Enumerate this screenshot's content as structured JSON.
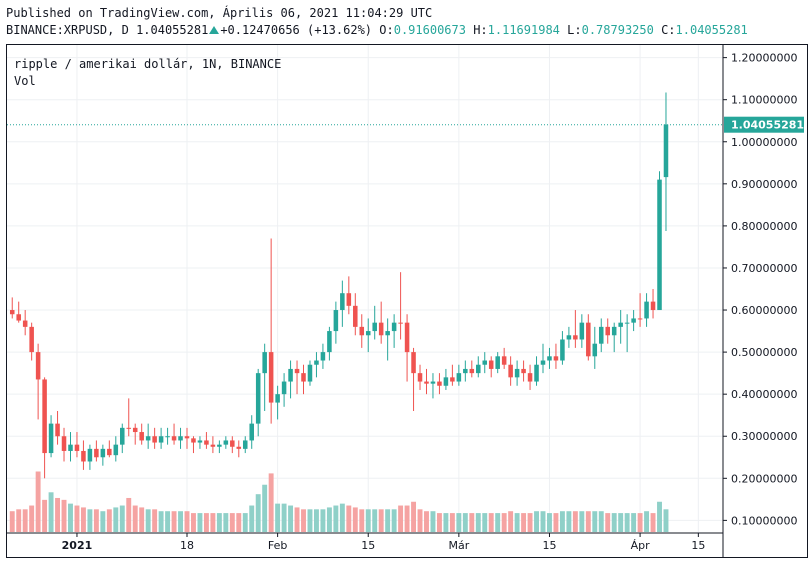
{
  "header": {
    "published": "Published on TradingView.com, Április 06, 2021 11:04:29 UTC",
    "symbol_line": "BINANCE:XRPUSD, D",
    "last": "1.04055281",
    "change": "+0.12470656 (+13.62%)",
    "o_label": "O:",
    "o_value": "0.91600673",
    "h_label": "H:",
    "h_value": "1.11691984",
    "l_label": "L:",
    "l_value": "0.78793250",
    "c_label": "C:",
    "c_value": "1.04055281"
  },
  "legend": {
    "line1": "ripple / amerikai dollár, 1N, BINANCE",
    "line2": "Vol"
  },
  "colors": {
    "up": "#26a69a",
    "down": "#ef5350",
    "vol_up": "#8fd0c8",
    "vol_down": "#f5a3a2",
    "price_line": "#26a69a",
    "last_label_bg": "#26a69a",
    "grid": "#eef0f3"
  },
  "chart_data": {
    "type": "candlestick",
    "y_axis": {
      "ticks": [
        "1.20000000",
        "1.10000000",
        "1.00000000",
        "0.90000000",
        "0.80000000",
        "0.70000000",
        "0.60000000",
        "0.50000000",
        "0.40000000",
        "0.30000000",
        "0.20000000",
        "0.10000000"
      ],
      "tick_values": [
        1.2,
        1.1,
        1.0,
        0.9,
        0.8,
        0.7,
        0.6,
        0.5,
        0.4,
        0.3,
        0.2,
        0.1
      ],
      "range": [
        0.07,
        1.23
      ],
      "position": "right"
    },
    "x_axis": {
      "ticks": [
        {
          "label": "2021",
          "index": 10,
          "bold": true
        },
        {
          "label": "18",
          "index": 27
        },
        {
          "label": "Feb",
          "index": 41
        },
        {
          "label": "15",
          "index": 55
        },
        {
          "label": "Már",
          "index": 69
        },
        {
          "label": "15",
          "index": 83
        },
        {
          "label": "Ápr",
          "index": 97
        },
        {
          "label": "15",
          "index": 106
        }
      ],
      "total_slots": 110
    },
    "last_price": 1.04055281,
    "last_price_label": "1.04055281",
    "grid": true,
    "candles": [
      [
        0.6,
        0.63,
        0.58,
        0.59,
        false
      ],
      [
        0.59,
        0.62,
        0.57,
        0.575,
        false
      ],
      [
        0.575,
        0.6,
        0.54,
        0.56,
        false
      ],
      [
        0.56,
        0.57,
        0.48,
        0.5,
        false
      ],
      [
        0.5,
        0.52,
        0.34,
        0.435,
        false
      ],
      [
        0.435,
        0.44,
        0.2,
        0.26,
        false
      ],
      [
        0.26,
        0.35,
        0.25,
        0.33,
        true
      ],
      [
        0.33,
        0.36,
        0.28,
        0.3,
        false
      ],
      [
        0.3,
        0.32,
        0.24,
        0.265,
        false
      ],
      [
        0.265,
        0.31,
        0.24,
        0.28,
        true
      ],
      [
        0.28,
        0.31,
        0.25,
        0.265,
        false
      ],
      [
        0.265,
        0.29,
        0.22,
        0.24,
        false
      ],
      [
        0.24,
        0.28,
        0.22,
        0.27,
        true
      ],
      [
        0.27,
        0.29,
        0.24,
        0.25,
        false
      ],
      [
        0.25,
        0.28,
        0.23,
        0.27,
        true
      ],
      [
        0.27,
        0.29,
        0.25,
        0.255,
        false
      ],
      [
        0.255,
        0.3,
        0.24,
        0.28,
        true
      ],
      [
        0.28,
        0.33,
        0.26,
        0.32,
        true
      ],
      [
        0.32,
        0.39,
        0.3,
        0.32,
        false
      ],
      [
        0.32,
        0.33,
        0.28,
        0.31,
        false
      ],
      [
        0.31,
        0.33,
        0.28,
        0.29,
        false
      ],
      [
        0.29,
        0.33,
        0.27,
        0.3,
        true
      ],
      [
        0.3,
        0.32,
        0.27,
        0.285,
        false
      ],
      [
        0.285,
        0.32,
        0.27,
        0.3,
        true
      ],
      [
        0.3,
        0.32,
        0.28,
        0.3,
        true
      ],
      [
        0.3,
        0.33,
        0.28,
        0.29,
        false
      ],
      [
        0.29,
        0.32,
        0.27,
        0.3,
        true
      ],
      [
        0.3,
        0.32,
        0.27,
        0.295,
        false
      ],
      [
        0.295,
        0.3,
        0.26,
        0.285,
        false
      ],
      [
        0.285,
        0.3,
        0.27,
        0.29,
        true
      ],
      [
        0.29,
        0.31,
        0.27,
        0.28,
        false
      ],
      [
        0.28,
        0.3,
        0.26,
        0.275,
        false
      ],
      [
        0.275,
        0.29,
        0.26,
        0.28,
        true
      ],
      [
        0.28,
        0.3,
        0.27,
        0.29,
        true
      ],
      [
        0.29,
        0.3,
        0.26,
        0.275,
        false
      ],
      [
        0.275,
        0.29,
        0.25,
        0.27,
        false
      ],
      [
        0.27,
        0.3,
        0.26,
        0.29,
        true
      ],
      [
        0.29,
        0.35,
        0.27,
        0.33,
        true
      ],
      [
        0.33,
        0.46,
        0.3,
        0.45,
        true
      ],
      [
        0.45,
        0.52,
        0.36,
        0.5,
        true
      ],
      [
        0.5,
        0.77,
        0.33,
        0.38,
        false
      ],
      [
        0.38,
        0.42,
        0.34,
        0.4,
        true
      ],
      [
        0.4,
        0.45,
        0.37,
        0.43,
        true
      ],
      [
        0.43,
        0.48,
        0.39,
        0.46,
        true
      ],
      [
        0.46,
        0.48,
        0.4,
        0.45,
        false
      ],
      [
        0.45,
        0.47,
        0.4,
        0.43,
        false
      ],
      [
        0.43,
        0.48,
        0.42,
        0.47,
        true
      ],
      [
        0.47,
        0.5,
        0.44,
        0.48,
        true
      ],
      [
        0.48,
        0.52,
        0.46,
        0.5,
        true
      ],
      [
        0.5,
        0.56,
        0.48,
        0.55,
        true
      ],
      [
        0.55,
        0.62,
        0.52,
        0.6,
        true
      ],
      [
        0.6,
        0.67,
        0.56,
        0.64,
        true
      ],
      [
        0.64,
        0.68,
        0.59,
        0.61,
        false
      ],
      [
        0.61,
        0.64,
        0.54,
        0.56,
        false
      ],
      [
        0.56,
        0.59,
        0.51,
        0.54,
        false
      ],
      [
        0.54,
        0.58,
        0.5,
        0.55,
        true
      ],
      [
        0.55,
        0.61,
        0.53,
        0.57,
        true
      ],
      [
        0.57,
        0.62,
        0.52,
        0.54,
        false
      ],
      [
        0.54,
        0.58,
        0.48,
        0.55,
        true
      ],
      [
        0.55,
        0.59,
        0.51,
        0.57,
        true
      ],
      [
        0.57,
        0.69,
        0.53,
        0.57,
        false
      ],
      [
        0.57,
        0.59,
        0.43,
        0.5,
        false
      ],
      [
        0.5,
        0.51,
        0.36,
        0.45,
        false
      ],
      [
        0.45,
        0.47,
        0.41,
        0.43,
        false
      ],
      [
        0.43,
        0.46,
        0.4,
        0.425,
        false
      ],
      [
        0.425,
        0.45,
        0.39,
        0.43,
        true
      ],
      [
        0.43,
        0.45,
        0.4,
        0.42,
        false
      ],
      [
        0.42,
        0.46,
        0.41,
        0.44,
        true
      ],
      [
        0.44,
        0.47,
        0.42,
        0.43,
        false
      ],
      [
        0.43,
        0.47,
        0.42,
        0.45,
        true
      ],
      [
        0.45,
        0.48,
        0.43,
        0.46,
        true
      ],
      [
        0.46,
        0.48,
        0.44,
        0.45,
        false
      ],
      [
        0.45,
        0.49,
        0.44,
        0.47,
        true
      ],
      [
        0.47,
        0.5,
        0.45,
        0.48,
        true
      ],
      [
        0.48,
        0.49,
        0.44,
        0.46,
        false
      ],
      [
        0.46,
        0.5,
        0.45,
        0.49,
        true
      ],
      [
        0.49,
        0.51,
        0.46,
        0.47,
        false
      ],
      [
        0.47,
        0.49,
        0.42,
        0.44,
        false
      ],
      [
        0.44,
        0.48,
        0.42,
        0.46,
        true
      ],
      [
        0.46,
        0.48,
        0.43,
        0.45,
        false
      ],
      [
        0.45,
        0.47,
        0.41,
        0.43,
        false
      ],
      [
        0.43,
        0.49,
        0.42,
        0.47,
        true
      ],
      [
        0.47,
        0.52,
        0.45,
        0.48,
        true
      ],
      [
        0.48,
        0.51,
        0.46,
        0.49,
        true
      ],
      [
        0.49,
        0.52,
        0.46,
        0.48,
        false
      ],
      [
        0.48,
        0.55,
        0.47,
        0.53,
        true
      ],
      [
        0.53,
        0.56,
        0.51,
        0.54,
        true
      ],
      [
        0.54,
        0.6,
        0.51,
        0.53,
        false
      ],
      [
        0.53,
        0.59,
        0.51,
        0.57,
        true
      ],
      [
        0.57,
        0.59,
        0.48,
        0.49,
        false
      ],
      [
        0.49,
        0.56,
        0.46,
        0.52,
        true
      ],
      [
        0.52,
        0.58,
        0.5,
        0.56,
        true
      ],
      [
        0.56,
        0.58,
        0.52,
        0.54,
        false
      ],
      [
        0.54,
        0.57,
        0.5,
        0.56,
        true
      ],
      [
        0.56,
        0.6,
        0.52,
        0.57,
        true
      ],
      [
        0.57,
        0.59,
        0.5,
        0.57,
        true
      ],
      [
        0.57,
        0.6,
        0.55,
        0.58,
        true
      ],
      [
        0.58,
        0.64,
        0.56,
        0.58,
        false
      ],
      [
        0.58,
        0.64,
        0.56,
        0.62,
        true
      ],
      [
        0.62,
        0.65,
        0.58,
        0.6,
        false
      ],
      [
        0.6,
        0.93,
        0.6,
        0.91,
        true
      ],
      [
        0.916,
        1.117,
        0.788,
        1.041,
        true
      ]
    ],
    "volume": [
      [
        0.11,
        false
      ],
      [
        0.12,
        false
      ],
      [
        0.12,
        false
      ],
      [
        0.14,
        false
      ],
      [
        0.32,
        false
      ],
      [
        0.17,
        false
      ],
      [
        0.21,
        true
      ],
      [
        0.18,
        false
      ],
      [
        0.17,
        false
      ],
      [
        0.15,
        true
      ],
      [
        0.14,
        false
      ],
      [
        0.13,
        false
      ],
      [
        0.12,
        true
      ],
      [
        0.12,
        false
      ],
      [
        0.11,
        true
      ],
      [
        0.12,
        false
      ],
      [
        0.13,
        true
      ],
      [
        0.14,
        true
      ],
      [
        0.18,
        false
      ],
      [
        0.14,
        false
      ],
      [
        0.13,
        false
      ],
      [
        0.12,
        true
      ],
      [
        0.12,
        false
      ],
      [
        0.11,
        true
      ],
      [
        0.11,
        true
      ],
      [
        0.11,
        false
      ],
      [
        0.11,
        true
      ],
      [
        0.11,
        false
      ],
      [
        0.1,
        false
      ],
      [
        0.1,
        true
      ],
      [
        0.1,
        false
      ],
      [
        0.1,
        false
      ],
      [
        0.1,
        true
      ],
      [
        0.1,
        true
      ],
      [
        0.1,
        false
      ],
      [
        0.1,
        false
      ],
      [
        0.1,
        true
      ],
      [
        0.14,
        true
      ],
      [
        0.2,
        true
      ],
      [
        0.25,
        true
      ],
      [
        0.31,
        false
      ],
      [
        0.15,
        true
      ],
      [
        0.15,
        true
      ],
      [
        0.14,
        true
      ],
      [
        0.13,
        false
      ],
      [
        0.12,
        false
      ],
      [
        0.12,
        true
      ],
      [
        0.12,
        true
      ],
      [
        0.12,
        true
      ],
      [
        0.13,
        true
      ],
      [
        0.14,
        true
      ],
      [
        0.15,
        true
      ],
      [
        0.14,
        false
      ],
      [
        0.13,
        false
      ],
      [
        0.12,
        false
      ],
      [
        0.12,
        true
      ],
      [
        0.12,
        true
      ],
      [
        0.12,
        false
      ],
      [
        0.12,
        true
      ],
      [
        0.12,
        true
      ],
      [
        0.14,
        false
      ],
      [
        0.14,
        false
      ],
      [
        0.16,
        false
      ],
      [
        0.12,
        false
      ],
      [
        0.11,
        false
      ],
      [
        0.11,
        true
      ],
      [
        0.1,
        false
      ],
      [
        0.1,
        true
      ],
      [
        0.1,
        false
      ],
      [
        0.1,
        true
      ],
      [
        0.1,
        true
      ],
      [
        0.1,
        false
      ],
      [
        0.1,
        true
      ],
      [
        0.1,
        true
      ],
      [
        0.1,
        false
      ],
      [
        0.1,
        true
      ],
      [
        0.1,
        false
      ],
      [
        0.11,
        false
      ],
      [
        0.1,
        true
      ],
      [
        0.1,
        false
      ],
      [
        0.1,
        false
      ],
      [
        0.11,
        true
      ],
      [
        0.11,
        true
      ],
      [
        0.1,
        true
      ],
      [
        0.1,
        false
      ],
      [
        0.11,
        true
      ],
      [
        0.11,
        true
      ],
      [
        0.11,
        false
      ],
      [
        0.11,
        true
      ],
      [
        0.11,
        false
      ],
      [
        0.11,
        true
      ],
      [
        0.11,
        true
      ],
      [
        0.1,
        false
      ],
      [
        0.1,
        true
      ],
      [
        0.1,
        true
      ],
      [
        0.1,
        true
      ],
      [
        0.1,
        true
      ],
      [
        0.1,
        false
      ],
      [
        0.11,
        true
      ],
      [
        0.1,
        false
      ],
      [
        0.16,
        true
      ],
      [
        0.12,
        true
      ]
    ]
  }
}
